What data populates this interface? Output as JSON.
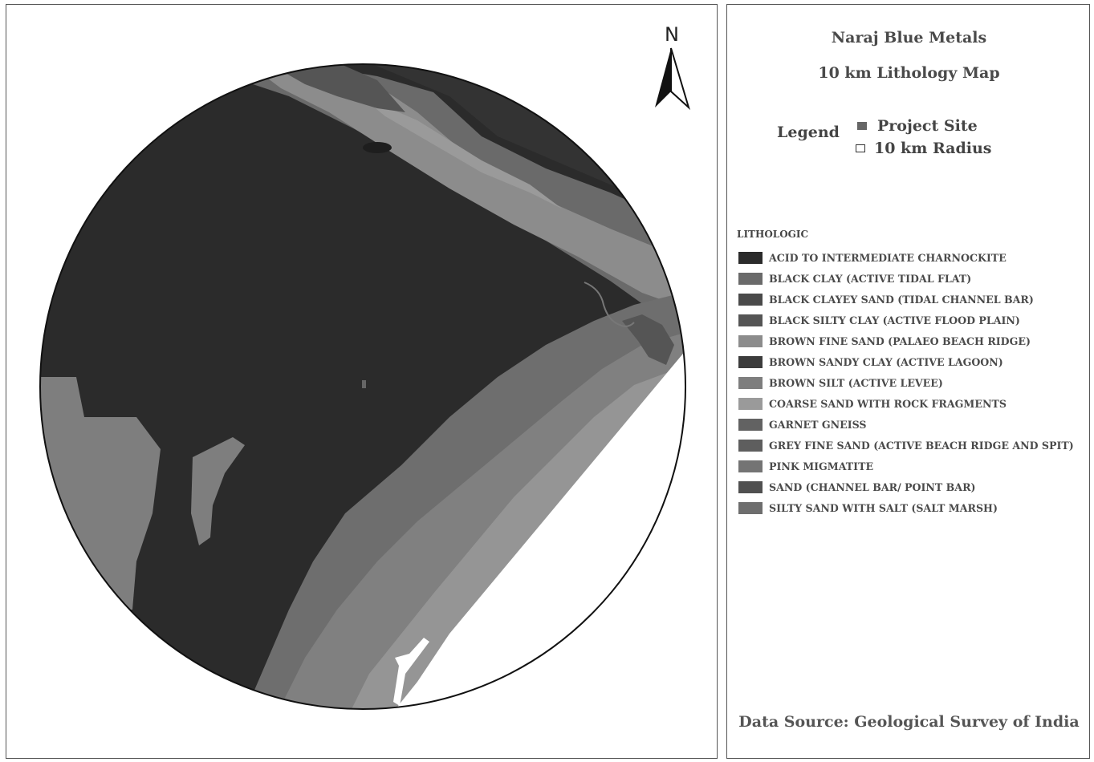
{
  "map": {
    "north_label": "N"
  },
  "legend_panel": {
    "title": "Naraj Blue Metals",
    "subtitle": "10 km Lithology Map",
    "legend_label": "Legend",
    "keys": [
      {
        "label": "Project Site",
        "color": "#666666"
      },
      {
        "label": "10 km Radius",
        "color": "#ffffff"
      }
    ],
    "lithologic_heading": "LITHOLOGIC",
    "lithologic_items": [
      {
        "label": "ACID TO INTERMEDIATE CHARNOCKITE",
        "color": "#2b2b2b"
      },
      {
        "label": "BLACK CLAY (ACTIVE TIDAL FLAT)",
        "color": "#6a6a6a"
      },
      {
        "label": "BLACK CLAYEY SAND (TIDAL CHANNEL BAR)",
        "color": "#4a4a4a"
      },
      {
        "label": "BLACK SILTY CLAY (ACTIVE FLOOD PLAIN)",
        "color": "#555555"
      },
      {
        "label": "BROWN FINE SAND (PALAEO BEACH RIDGE)",
        "color": "#8c8c8c"
      },
      {
        "label": "BROWN SANDY CLAY (ACTIVE LAGOON)",
        "color": "#3c3c3c"
      },
      {
        "label": "BROWN SILT (ACTIVE LEVEE)",
        "color": "#7e7e7e"
      },
      {
        "label": "COARSE SAND WITH ROCK FRAGMENTS",
        "color": "#9a9a9a"
      },
      {
        "label": "GARNET GNEISS",
        "color": "#626262"
      },
      {
        "label": "GREY FINE SAND (ACTIVE BEACH RIDGE AND SPIT)",
        "color": "#5e5e5e"
      },
      {
        "label": "PINK MIGMATITE",
        "color": "#747474"
      },
      {
        "label": "SAND (CHANNEL BAR/ POINT BAR)",
        "color": "#505050"
      },
      {
        "label": "SILTY SAND WITH SALT (SALT MARSH)",
        "color": "#6e6e6e"
      }
    ],
    "data_source": "Data Source: Geological Survey of India"
  }
}
